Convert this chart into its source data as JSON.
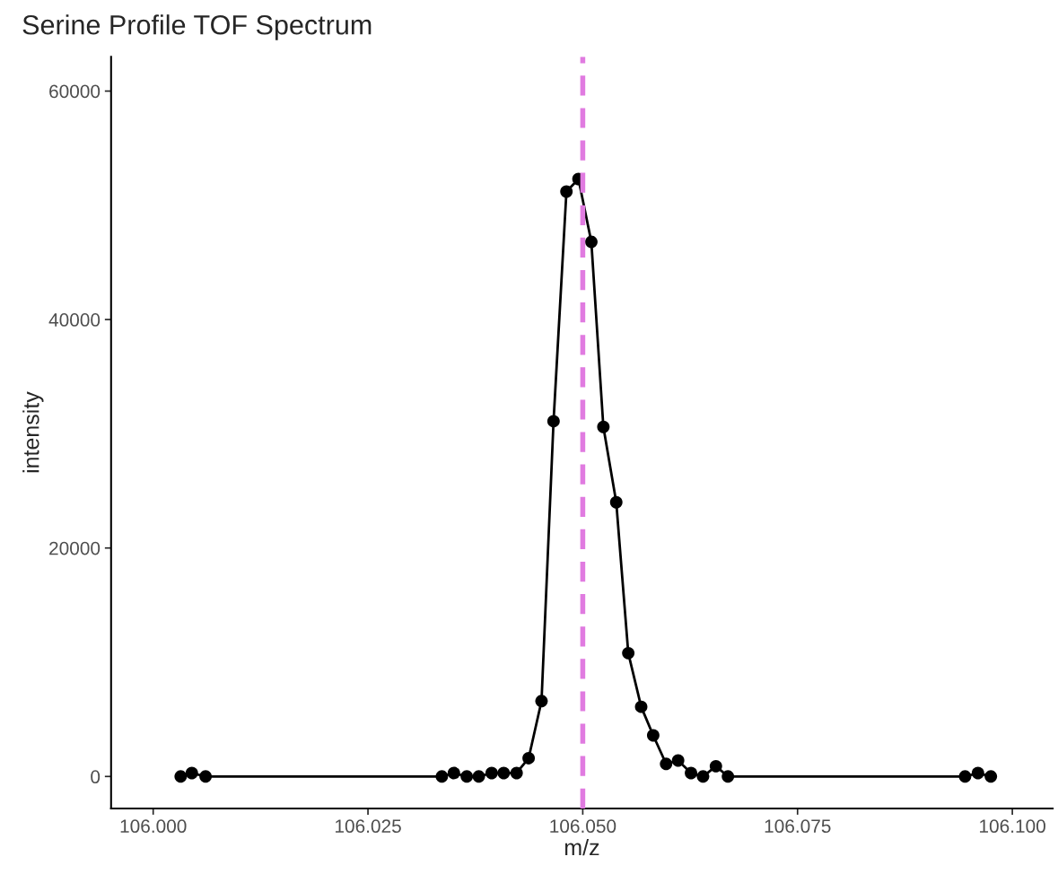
{
  "chart_data": {
    "type": "line",
    "title": "Serine Profile TOF Spectrum",
    "xlabel": "m/z",
    "ylabel": "intensity",
    "x": [
      106.0032,
      106.0045,
      106.0061,
      106.0336,
      106.035,
      106.0365,
      106.0379,
      106.0394,
      106.0408,
      106.0423,
      106.0437,
      106.0452,
      106.0466,
      106.0481,
      106.0495,
      106.051,
      106.0524,
      106.0539,
      106.0553,
      106.0568,
      106.0582,
      106.0597,
      106.0611,
      106.0626,
      106.064,
      106.0655,
      106.0669,
      106.0945,
      106.096,
      106.0975
    ],
    "series": [
      {
        "color": "#000000",
        "values": [
          0,
          300,
          0,
          0,
          300,
          0,
          0,
          300,
          300,
          300,
          1600,
          6600,
          31100,
          51200,
          52300,
          46800,
          30600,
          24000,
          10800,
          6100,
          3600,
          1100,
          1400,
          300,
          0,
          900,
          0,
          0,
          300,
          0
        ]
      }
    ],
    "marker": "circle",
    "line_style": "solid",
    "grid": false,
    "legend": false,
    "xlim": [
      105.9951,
      106.1047
    ],
    "ylim": [
      -2800,
      63000
    ],
    "xticks": [
      {
        "value": 106.0,
        "label": "106.000"
      },
      {
        "value": 106.025,
        "label": "106.025"
      },
      {
        "value": 106.05,
        "label": "106.050"
      },
      {
        "value": 106.075,
        "label": "106.075"
      },
      {
        "value": 106.1,
        "label": "106.100"
      }
    ],
    "yticks": [
      0,
      20000,
      40000,
      60000
    ],
    "ref_lines": [
      {
        "axis": "x",
        "value": 106.05,
        "color": "#e07be0",
        "line_style": "dashed"
      }
    ]
  }
}
